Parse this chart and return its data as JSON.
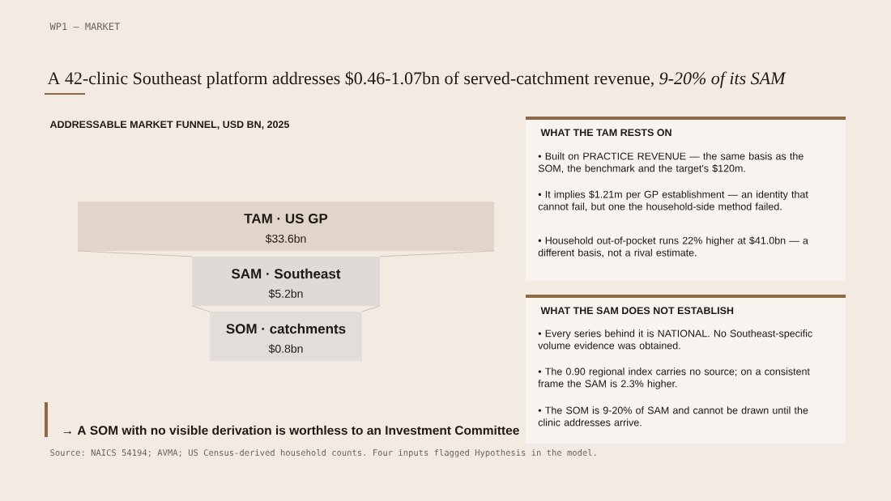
{
  "chart_data": [
    {
      "type": "other",
      "title": "A 42-clinic Southeast platform addresses $0.46-1.07bn of served-catchment revenue, *9-20% of its SAM*",
      "subtitle": "ADDRESSABLE MARKET FUNNEL, USD BN, 2025",
      "categories": [
        "TAM · US GP",
        "SAM · Southeast",
        "SOM · catchments"
      ],
      "values": [
        33.6,
        5.2,
        0.8
      ],
      "value_labels": [
        "$33.6bn",
        "$5.2bn",
        "$0.8bn"
      ],
      "colors": [
        "#e0d5c8",
        "#dedad6",
        "#e0dddb"
      ],
      "annotations": [
        "WP1 — MARKET",
        "→ A SOM with no visible derivation is worthless to an Investment Committee",
        "Source: NAICS 54194; AVMA; US Census-derived household counts. Four inputs flagged Hypothesis in the model."
      ]
    },
    {
      "type": "other",
      "title": "WHAT THE TAM RESTS ON",
      "annotations": [
        "•  Built on PRACTICE REVENUE — the same basis as the SOM, the benchmark and the target's $120m.",
        "•  It implies $1.21m per GP establishment — an identity that cannot fail, but one the household-side method failed.",
        "•  Household out-of-pocket runs 22% higher at $41.0bn — a different basis, not a rival estimate."
      ]
    },
    {
      "type": "other",
      "title": "WHAT THE SAM DOES NOT ESTABLISH",
      "annotations": [
        "•  Every series behind it is NATIONAL. No Southeast-specific volume evidence was obtained.",
        "•  The 0.90 regional index carries no source; on a consistent frame the SAM is 2.3% higher.",
        "•  The SOM is 9-20% of SAM and cannot be drawn until the clinic addresses arrive."
      ]
    }
  ]
}
